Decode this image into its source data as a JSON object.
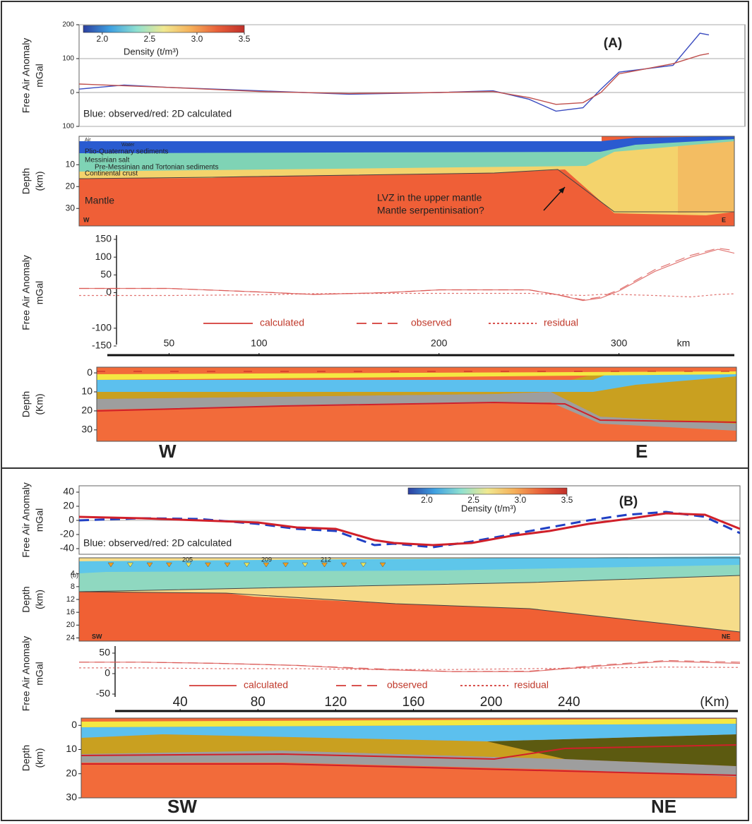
{
  "chart_data": [
    {
      "type": "line",
      "annotation": "(A)",
      "legend_text": "Blue: observed/red: 2D calculated",
      "ylabel": "Free Air Anomaly",
      "yunit": "mGal",
      "x": [
        0,
        25,
        50,
        100,
        150,
        200,
        230,
        250,
        265,
        280,
        290,
        300,
        315,
        330,
        345,
        350
      ],
      "xlim": [
        0,
        370
      ],
      "ylim": [
        -100,
        200
      ],
      "yticks": [
        200,
        100,
        0,
        {
          "value": -100,
          "label": "100"
        }
      ],
      "grid": true,
      "series": [
        {
          "color": "#3b4cc0",
          "dash": "solid",
          "values": [
            10,
            22,
            15,
            5,
            -5,
            0,
            5,
            -20,
            -55,
            -45,
            10,
            60,
            70,
            80,
            175,
            170
          ]
        },
        {
          "color": "#c0504d",
          "dash": "solid",
          "values": [
            25,
            20,
            15,
            3,
            -3,
            0,
            3,
            -15,
            -35,
            -30,
            0,
            55,
            70,
            85,
            110,
            115
          ]
        }
      ],
      "colorbar": {
        "label": "Density (t/m³)",
        "lim": [
          1.8,
          3.5
        ],
        "ticks": [
          {
            "value": 2,
            "label": "2.0"
          },
          2.5,
          {
            "value": 3,
            "label": "3.0"
          },
          3.5
        ],
        "colors": [
          "#2c3fa0",
          "#3fa0e0",
          "#8fe0d0",
          "#f0e890",
          "#f5b05a",
          "#e8603a",
          "#c0302a"
        ]
      }
    },
    {
      "type": "line",
      "ylabel": "Free Air Anomaly",
      "yunit": "mGal",
      "x": [
        0,
        50,
        100,
        130,
        170,
        200,
        250,
        265,
        280,
        290,
        300,
        320,
        340,
        355,
        365,
        370
      ],
      "xlim": [
        0,
        370
      ],
      "xticks": [
        50,
        100,
        200,
        300
      ],
      "xunit": "km",
      "ylim": [
        -150,
        150
      ],
      "yticks": [
        150,
        100,
        50,
        0,
        -100,
        -150
      ],
      "series": [
        {
          "name": "calculated",
          "color": "#d9534f",
          "dash": "solid",
          "values": [
            12,
            12,
            2,
            -5,
            0,
            8,
            8,
            -5,
            -22,
            -15,
            5,
            60,
            100,
            122,
            110,
            85
          ]
        },
        {
          "name": "observed",
          "color": "#d9534f",
          "dash": "dashed",
          "values": [
            12,
            12,
            2,
            -5,
            0,
            8,
            8,
            -5,
            -20,
            -12,
            8,
            65,
            105,
            125,
            118,
            90
          ]
        },
        {
          "name": "residual",
          "color": "#d9534f",
          "dash": "dotted",
          "values": [
            -8,
            -8,
            -6,
            -3,
            -2,
            -2,
            -2,
            -5,
            -8,
            -5,
            -5,
            -8,
            -12,
            -5,
            -3,
            -2
          ]
        }
      ]
    },
    {
      "type": "line",
      "annotation": "(B)",
      "legend_text": "Blue: observed/red: 2D calculated",
      "ylabel": "Free Air Anomaly",
      "yunit": "mGal",
      "x": [
        -12,
        20,
        50,
        80,
        100,
        120,
        140,
        150,
        170,
        190,
        210,
        230,
        250,
        270,
        290,
        310,
        328
      ],
      "xlim": [
        -12,
        328
      ],
      "ylim": [
        -48,
        49
      ],
      "yticks": [
        40,
        20,
        0,
        -20,
        -40
      ],
      "zero_line": true,
      "series": [
        {
          "color": "#1f3fc4",
          "dash": "dashed",
          "values": [
            0,
            3,
            2,
            -5,
            -12,
            -15,
            -35,
            -33,
            -38,
            -30,
            -20,
            -10,
            0,
            8,
            12,
            5,
            -18
          ]
        },
        {
          "color": "#d0202a",
          "dash": "solid",
          "values": [
            5,
            3,
            0,
            -3,
            -10,
            -12,
            -28,
            -32,
            -35,
            -32,
            -22,
            -15,
            -5,
            2,
            10,
            8,
            -12
          ]
        }
      ],
      "colorbar": {
        "label": "Density (t/m³)",
        "lim": [
          1.8,
          3.5
        ],
        "ticks": [
          {
            "value": 2,
            "label": "2.0"
          },
          2.5,
          {
            "value": 3,
            "label": "3.0"
          },
          3.5
        ],
        "colors": [
          "#2c3fa0",
          "#3fa0e0",
          "#8fe0d0",
          "#f0e890",
          "#f5b05a",
          "#e8603a",
          "#c0302a"
        ]
      }
    },
    {
      "type": "line",
      "ylabel": "Free Air Anomaly",
      "yunit": "mGal",
      "x": [
        -12,
        20,
        60,
        100,
        140,
        180,
        220,
        260,
        290,
        328
      ],
      "xlim": [
        -12,
        328
      ],
      "xticks": [
        40,
        80,
        120,
        160,
        200,
        240
      ],
      "xunit": "(Km)",
      "ylim": [
        -50,
        50
      ],
      "yticks": [
        50,
        0,
        -50
      ],
      "series": [
        {
          "name": "calculated",
          "color": "#d9534f",
          "dash": "solid",
          "values": [
            28,
            28,
            25,
            20,
            10,
            5,
            5,
            20,
            30,
            25
          ]
        },
        {
          "name": "observed",
          "color": "#d9534f",
          "dash": "dashed",
          "values": [
            28,
            28,
            25,
            20,
            12,
            5,
            6,
            22,
            32,
            28
          ]
        },
        {
          "name": "residual",
          "color": "#d9534f",
          "dash": "dotted",
          "values": [
            14,
            14,
            12,
            12,
            10,
            10,
            12,
            14,
            16,
            15
          ]
        }
      ]
    }
  ],
  "sections": [
    {
      "ylabel": "Depth",
      "yunit": "(km)",
      "ylim": [
        -3,
        38
      ],
      "yticks": [
        10,
        20,
        30
      ],
      "labels": [
        "Air",
        "Water",
        "Plio-Quaternary sediments",
        "Messinian salt",
        "Pre-Messinian and Tortonian sediments",
        "Continental crust",
        "Mantle",
        "LVZ in the upper mantle",
        "Mantle serpentinisation?",
        "W",
        "E"
      ]
    },
    {
      "ylabel": "Depth",
      "yunit": "(Km)",
      "ylim": [
        -3,
        36
      ],
      "yticks": [
        0,
        10,
        20,
        30
      ],
      "labels": [
        "W",
        "E"
      ]
    },
    {
      "ylabel": "Depth",
      "yunit": "(km)",
      "ylim": [
        -1,
        25
      ],
      "yticks": [
        4,
        8,
        12,
        16,
        20,
        24
      ],
      "labels": [
        "(b)",
        "205",
        "209",
        "212",
        "SW",
        "NE"
      ]
    },
    {
      "ylabel": "Depth",
      "yunit": "(km)",
      "ylim": [
        -3,
        30
      ],
      "yticks": [
        0,
        10,
        20,
        30
      ],
      "labels": [
        "SW",
        "NE"
      ]
    }
  ]
}
